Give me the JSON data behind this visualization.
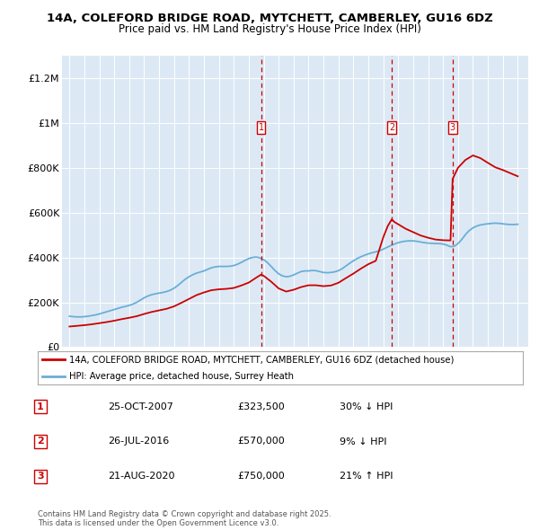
{
  "title": "14A, COLEFORD BRIDGE ROAD, MYTCHETT, CAMBERLEY, GU16 6DZ",
  "subtitle": "Price paid vs. HM Land Registry's House Price Index (HPI)",
  "background_color": "#dce9f5",
  "plot_bg_color": "#dce9f5",
  "y_ticks": [
    0,
    200000,
    400000,
    600000,
    800000,
    1000000,
    1200000
  ],
  "y_tick_labels": [
    "£0",
    "£200K",
    "£400K",
    "£600K",
    "£800K",
    "£1M",
    "£1.2M"
  ],
  "ylim": [
    0,
    1300000
  ],
  "xlim_start": 1994.5,
  "xlim_end": 2025.7,
  "vline_dates": [
    2007.82,
    2016.57,
    2020.64
  ],
  "vline_labels": [
    "1",
    "2",
    "3"
  ],
  "hpi_color": "#6baed6",
  "price_color": "#cc0000",
  "legend_label_price": "14A, COLEFORD BRIDGE ROAD, MYTCHETT, CAMBERLEY, GU16 6DZ (detached house)",
  "legend_label_hpi": "HPI: Average price, detached house, Surrey Heath",
  "table_data": [
    [
      "1",
      "25-OCT-2007",
      "£323,500",
      "30% ↓ HPI"
    ],
    [
      "2",
      "26-JUL-2016",
      "£570,000",
      "9% ↓ HPI"
    ],
    [
      "3",
      "21-AUG-2020",
      "£750,000",
      "21% ↑ HPI"
    ]
  ],
  "footer": "Contains HM Land Registry data © Crown copyright and database right 2025.\nThis data is licensed under the Open Government Licence v3.0.",
  "hpi_data_x": [
    1995.0,
    1995.25,
    1995.5,
    1995.75,
    1996.0,
    1996.25,
    1996.5,
    1996.75,
    1997.0,
    1997.25,
    1997.5,
    1997.75,
    1998.0,
    1998.25,
    1998.5,
    1998.75,
    1999.0,
    1999.25,
    1999.5,
    1999.75,
    2000.0,
    2000.25,
    2000.5,
    2000.75,
    2001.0,
    2001.25,
    2001.5,
    2001.75,
    2002.0,
    2002.25,
    2002.5,
    2002.75,
    2003.0,
    2003.25,
    2003.5,
    2003.75,
    2004.0,
    2004.25,
    2004.5,
    2004.75,
    2005.0,
    2005.25,
    2005.5,
    2005.75,
    2006.0,
    2006.25,
    2006.5,
    2006.75,
    2007.0,
    2007.25,
    2007.5,
    2007.75,
    2008.0,
    2008.25,
    2008.5,
    2008.75,
    2009.0,
    2009.25,
    2009.5,
    2009.75,
    2010.0,
    2010.25,
    2010.5,
    2010.75,
    2011.0,
    2011.25,
    2011.5,
    2011.75,
    2012.0,
    2012.25,
    2012.5,
    2012.75,
    2013.0,
    2013.25,
    2013.5,
    2013.75,
    2014.0,
    2014.25,
    2014.5,
    2014.75,
    2015.0,
    2015.25,
    2015.5,
    2015.75,
    2016.0,
    2016.25,
    2016.5,
    2016.75,
    2017.0,
    2017.25,
    2017.5,
    2017.75,
    2018.0,
    2018.25,
    2018.5,
    2018.75,
    2019.0,
    2019.25,
    2019.5,
    2019.75,
    2020.0,
    2020.25,
    2020.5,
    2020.75,
    2021.0,
    2021.25,
    2021.5,
    2021.75,
    2022.0,
    2022.25,
    2022.5,
    2022.75,
    2023.0,
    2023.25,
    2023.5,
    2023.75,
    2024.0,
    2024.25,
    2024.5,
    2024.75,
    2025.0
  ],
  "hpi_data_y": [
    138000,
    136000,
    135000,
    135000,
    136000,
    138000,
    141000,
    144000,
    148000,
    153000,
    158000,
    163000,
    168000,
    173000,
    178000,
    182000,
    186000,
    192000,
    200000,
    210000,
    220000,
    228000,
    234000,
    238000,
    241000,
    244000,
    248000,
    254000,
    263000,
    275000,
    289000,
    303000,
    314000,
    323000,
    330000,
    335000,
    340000,
    347000,
    354000,
    358000,
    360000,
    360000,
    360000,
    361000,
    364000,
    370000,
    378000,
    387000,
    395000,
    400000,
    402000,
    398000,
    390000,
    377000,
    360000,
    342000,
    327000,
    318000,
    314000,
    316000,
    322000,
    330000,
    337000,
    340000,
    340000,
    342000,
    341000,
    337000,
    333000,
    332000,
    333000,
    336000,
    341000,
    350000,
    362000,
    374000,
    385000,
    395000,
    403000,
    410000,
    416000,
    421000,
    425000,
    430000,
    437000,
    445000,
    453000,
    460000,
    466000,
    470000,
    473000,
    474000,
    474000,
    472000,
    469000,
    466000,
    464000,
    463000,
    462000,
    462000,
    460000,
    455000,
    448000,
    450000,
    462000,
    480000,
    502000,
    520000,
    532000,
    540000,
    545000,
    548000,
    550000,
    552000,
    553000,
    552000,
    550000,
    548000,
    547000,
    547000,
    548000
  ],
  "price_data_x": [
    1995.0,
    1995.5,
    1996.0,
    1996.5,
    1997.0,
    1997.5,
    1998.0,
    1998.5,
    1999.0,
    1999.5,
    2000.0,
    2000.5,
    2001.0,
    2001.5,
    2002.0,
    2002.5,
    2003.0,
    2003.5,
    2004.0,
    2004.5,
    2005.0,
    2005.5,
    2006.0,
    2006.5,
    2007.0,
    2007.5,
    2007.82,
    2008.0,
    2008.5,
    2009.0,
    2009.5,
    2010.0,
    2010.5,
    2011.0,
    2011.5,
    2012.0,
    2012.5,
    2013.0,
    2013.5,
    2014.0,
    2014.5,
    2015.0,
    2015.5,
    2016.0,
    2016.3,
    2016.57,
    2016.75,
    2017.0,
    2017.5,
    2018.0,
    2018.5,
    2019.0,
    2019.5,
    2020.0,
    2020.5,
    2020.64,
    2021.0,
    2021.5,
    2022.0,
    2022.5,
    2023.0,
    2023.5,
    2024.0,
    2024.5,
    2025.0
  ],
  "price_data_y": [
    92000,
    95000,
    98000,
    102000,
    107000,
    112000,
    118000,
    125000,
    131000,
    138000,
    148000,
    157000,
    164000,
    171000,
    182000,
    198000,
    215000,
    232000,
    244000,
    254000,
    258000,
    260000,
    264000,
    275000,
    288000,
    310000,
    323500,
    318000,
    292000,
    262000,
    248000,
    256000,
    268000,
    276000,
    276000,
    272000,
    275000,
    287000,
    308000,
    328000,
    350000,
    370000,
    385000,
    490000,
    540000,
    570000,
    558000,
    548000,
    528000,
    513000,
    498000,
    488000,
    480000,
    477000,
    476000,
    750000,
    800000,
    835000,
    855000,
    843000,
    822000,
    802000,
    790000,
    776000,
    762000
  ]
}
